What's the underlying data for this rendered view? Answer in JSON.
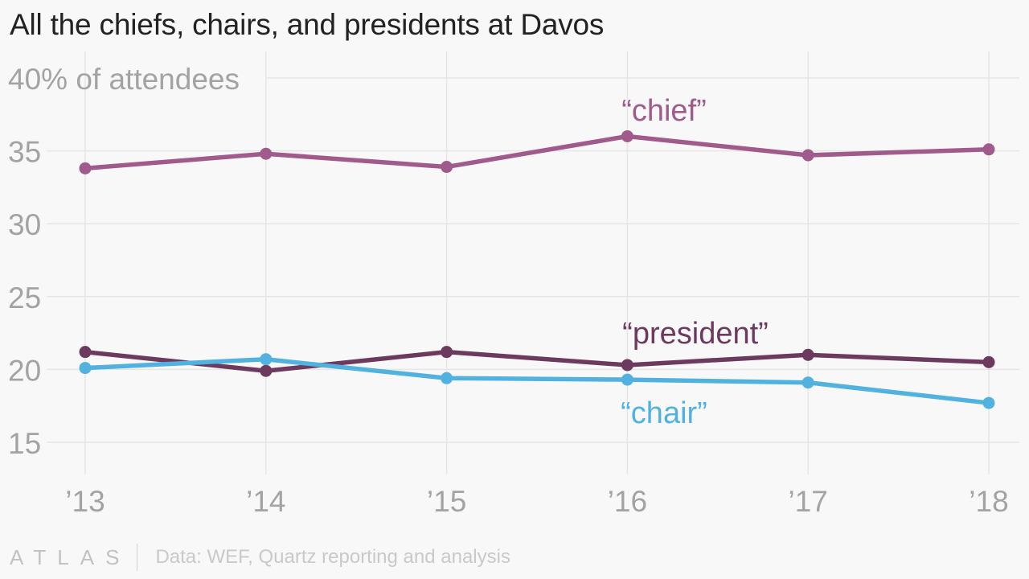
{
  "title": "All the chiefs, chairs, and presidents at Davos",
  "footer": {
    "logo": "ATLAS",
    "source": "Data: WEF, Quartz reporting and analysis"
  },
  "chart_data": {
    "type": "line",
    "title": "All the chiefs, chairs, and presidents at Davos",
    "categories": [
      "’13",
      "’14",
      "’15",
      "’16",
      "’17",
      "’18"
    ],
    "ylabel": "% of attendees",
    "ylim": [
      13,
      42
    ],
    "y_ticks": [
      15,
      20,
      25,
      30,
      35,
      40
    ],
    "y_tick_labels": [
      "15",
      "20",
      "25",
      "30",
      "35",
      "40"
    ],
    "grid": true,
    "legend": "inline labels",
    "series": [
      {
        "name": "“chief”",
        "color": "#a05b8c",
        "values": [
          33.8,
          34.8,
          33.9,
          36.0,
          34.7,
          35.1
        ]
      },
      {
        "name": "“president”",
        "color": "#6b3a5e",
        "values": [
          21.2,
          19.9,
          21.2,
          20.3,
          21.0,
          20.5
        ]
      },
      {
        "name": "“chair”",
        "color": "#51b2e0",
        "values": [
          20.1,
          20.7,
          19.4,
          19.3,
          19.1,
          17.7
        ]
      }
    ]
  }
}
